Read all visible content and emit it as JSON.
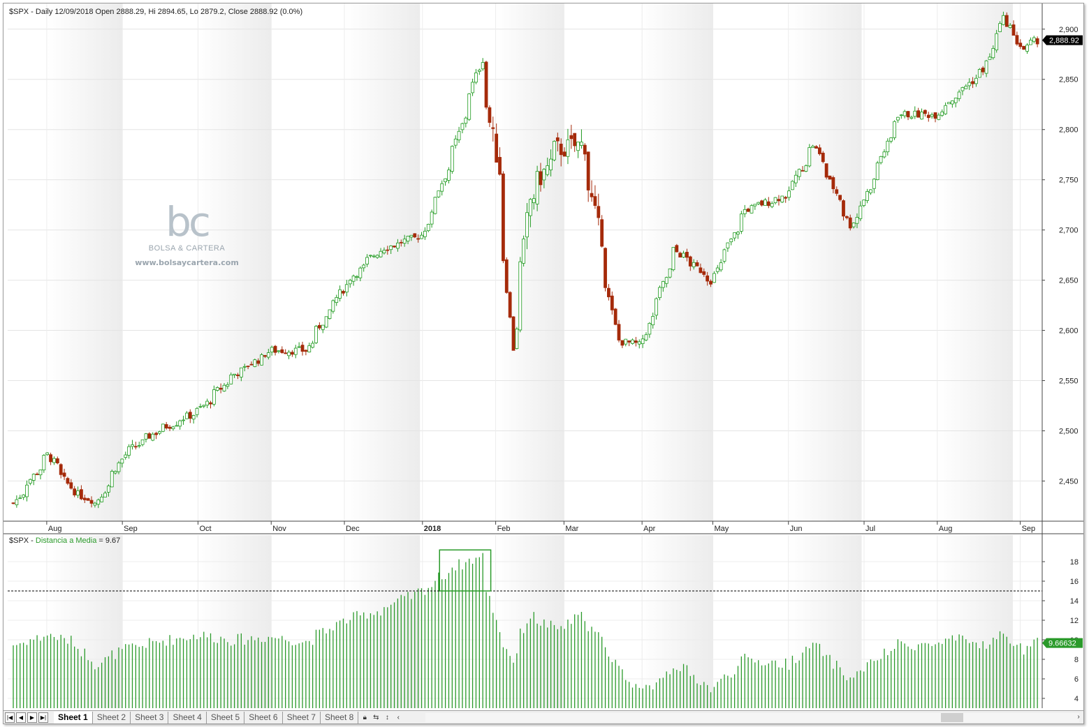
{
  "main_chart": {
    "title": "$SPX - Daily 12/09/2018 Open 2888.29, Hi 2894.65, Lo 2879.2, Close 2888.92 (0.0%)",
    "last_price_label": "2,888.92",
    "y_ticks": [
      "2,450",
      "2,500",
      "2,550",
      "2,600",
      "2,650",
      "2,700",
      "2,750",
      "2,800",
      "2,850",
      "2,900"
    ],
    "y_tick_values": [
      2450,
      2500,
      2550,
      2600,
      2650,
      2700,
      2750,
      2800,
      2850,
      2900
    ],
    "x_labels": [
      "Aug",
      "Sep",
      "Oct",
      "Nov",
      "Dec",
      "2018",
      "Feb",
      "Mar",
      "Apr",
      "May",
      "Jun",
      "Jul",
      "Aug",
      "Sep"
    ]
  },
  "indicator": {
    "prefix": "$SPX - ",
    "name": "Distancia a Media",
    "value_text": " = 9.67",
    "last_label": "9.66632",
    "y_ticks": [
      "4",
      "6",
      "8",
      "10",
      "12",
      "14",
      "16",
      "18"
    ],
    "y_tick_values": [
      4,
      6,
      8,
      10,
      12,
      14,
      16,
      18
    ],
    "threshold": 15
  },
  "watermark": {
    "logo": "bc",
    "name": "BOLSA & CARTERA",
    "url": "www.bolsaycartera.com"
  },
  "tabs": {
    "items": [
      "Sheet 1",
      "Sheet 2",
      "Sheet 3",
      "Sheet 4",
      "Sheet 5",
      "Sheet 6",
      "Sheet 7",
      "Sheet 8"
    ],
    "active": "Sheet 1"
  },
  "colors": {
    "up": "#1f9a1f",
    "down": "#a52a0a",
    "indicator": "#2a9a2a",
    "highlight_box": "#2a9a2a"
  },
  "chart_data": [
    {
      "type": "line",
      "title": "$SPX - Daily 12/09/2018 Open 2888.29, Hi 2894.65, Lo 2879.2, Close 2888.92 (0.0%)",
      "x": [
        "2017-07-18",
        "2017-08-01",
        "2017-08-11",
        "2017-08-21",
        "2017-09-01",
        "2017-09-15",
        "2017-10-02",
        "2017-10-16",
        "2017-11-01",
        "2017-11-15",
        "2017-12-01",
        "2017-12-15",
        "2018-01-02",
        "2018-01-15",
        "2018-01-26",
        "2018-02-02",
        "2018-02-08",
        "2018-02-15",
        "2018-02-26",
        "2018-03-09",
        "2018-03-23",
        "2018-04-02",
        "2018-04-16",
        "2018-05-01",
        "2018-05-15",
        "2018-06-01",
        "2018-06-12",
        "2018-06-27",
        "2018-07-02",
        "2018-07-17",
        "2018-08-01",
        "2018-08-10",
        "2018-08-21",
        "2018-08-29",
        "2018-09-06",
        "2018-09-12"
      ],
      "series": [
        {
          "values": [
            2428,
            2476,
            2440,
            2428,
            2476,
            2500,
            2520,
            2555,
            2580,
            2580,
            2645,
            2680,
            2695,
            2780,
            2870,
            2760,
            2582,
            2730,
            2780,
            2785,
            2590,
            2585,
            2680,
            2650,
            2720,
            2735,
            2785,
            2705,
            2725,
            2815,
            2815,
            2835,
            2860,
            2910,
            2880,
            2889
          ]
        }
      ],
      "ylim": [
        2410,
        2920
      ],
      "ylabel": ""
    },
    {
      "type": "bar",
      "title": "$SPX - Distancia a Media = 9.67",
      "x": [
        "2017-07-18",
        "2017-08-01",
        "2017-08-11",
        "2017-08-21",
        "2017-09-01",
        "2017-09-15",
        "2017-10-02",
        "2017-10-16",
        "2017-11-01",
        "2017-11-15",
        "2017-12-01",
        "2017-12-15",
        "2018-01-02",
        "2018-01-15",
        "2018-01-26",
        "2018-02-02",
        "2018-02-08",
        "2018-02-15",
        "2018-02-26",
        "2018-03-09",
        "2018-03-23",
        "2018-04-02",
        "2018-04-16",
        "2018-05-01",
        "2018-05-15",
        "2018-06-01",
        "2018-06-12",
        "2018-06-27",
        "2018-07-02",
        "2018-07-17",
        "2018-08-01",
        "2018-08-10",
        "2018-08-21",
        "2018-08-29",
        "2018-09-06",
        "2018-09-12"
      ],
      "series": [
        {
          "name": "Distancia a Media",
          "values": [
            9.5,
            10.5,
            9.8,
            7.5,
            9.0,
            9.8,
            10.5,
            10.0,
            10.3,
            9.8,
            12.0,
            13.0,
            15.0,
            17.5,
            18.5,
            11.0,
            8.0,
            12.5,
            11.0,
            12.5,
            7.5,
            4.5,
            7.5,
            5.0,
            8.0,
            7.5,
            9.5,
            6.0,
            7.0,
            9.5,
            9.5,
            10.0,
            9.5,
            10.5,
            9.0,
            9.67
          ]
        }
      ],
      "ylim": [
        3,
        20
      ],
      "reference_line": 15
    }
  ]
}
